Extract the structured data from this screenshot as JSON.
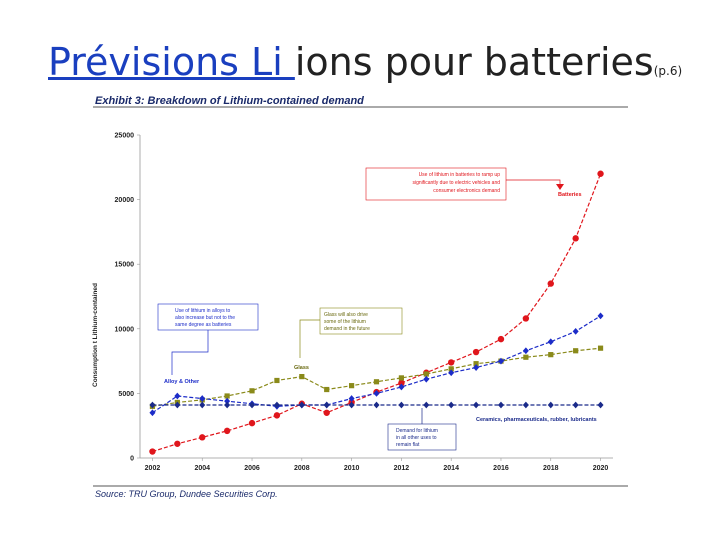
{
  "slide": {
    "title_link": "Prévisions  Li ",
    "title_rest": "ions pour batteries",
    "title_sub": "(p.6)"
  },
  "chart_data": {
    "type": "line",
    "title": "Exhibit 3: Breakdown of Lithium-contained demand",
    "source": "Source: TRU Group, Dundee Securities Corp.",
    "xlabel": "",
    "ylabel": "Consumption t Lithium-contained",
    "xlim": [
      2001.5,
      2020.5
    ],
    "ylim": [
      0,
      25000
    ],
    "x_ticks": [
      "2002",
      "2004",
      "2006",
      "2008",
      "2010",
      "2012",
      "2014",
      "2016",
      "2018",
      "2020"
    ],
    "y_ticks": [
      "0",
      "5000",
      "10000",
      "15000",
      "20000",
      "25000"
    ],
    "x": [
      2002,
      2003,
      2004,
      2005,
      2006,
      2007,
      2008,
      2009,
      2010,
      2011,
      2012,
      2013,
      2014,
      2015,
      2016,
      2017,
      2018,
      2019,
      2020
    ],
    "series": [
      {
        "name": "Batteries",
        "color": "#e0161c",
        "marker": "circle",
        "values": [
          500,
          1100,
          1600,
          2100,
          2700,
          3300,
          4200,
          3500,
          4300,
          5100,
          5800,
          6600,
          7400,
          8200,
          9200,
          10800,
          13500,
          17000,
          22000
        ]
      },
      {
        "name": "Glass",
        "color": "#8a8a1a",
        "marker": "square",
        "values": [
          4000,
          4300,
          4500,
          4800,
          5200,
          6000,
          6300,
          5300,
          5600,
          5900,
          6200,
          6500,
          6900,
          7300,
          7500,
          7800,
          8000,
          8300,
          8500
        ]
      },
      {
        "name": "Alloy & Other",
        "color": "#1c2cc8",
        "marker": "diamond",
        "values": [
          3500,
          4800,
          4600,
          4400,
          4200,
          4000,
          4100,
          4100,
          4600,
          5000,
          5500,
          6100,
          6600,
          7000,
          7500,
          8300,
          9000,
          9800,
          11000
        ]
      },
      {
        "name": "Ceramics, pharmaceuticals, rubber, lubricants",
        "color": "#1a2a8a",
        "marker": "diamond",
        "values": [
          4100,
          4100,
          4100,
          4100,
          4100,
          4100,
          4100,
          4100,
          4100,
          4100,
          4100,
          4100,
          4100,
          4100,
          4100,
          4100,
          4100,
          4100,
          4100
        ]
      }
    ],
    "annotations": {
      "batteries_note": [
        "Use of lithium in batteries to ramp up",
        "significantly due to electric vehicles and",
        "consumer electronics demand"
      ],
      "alloy_note": [
        "Use of lithium in alloys to",
        "also increase but not to the",
        "same degree as batteries"
      ],
      "glass_note": [
        "Glass will also drive",
        "some of the lithium",
        "demand in the future"
      ],
      "other_note": [
        "Demand for lithium",
        "in all other uses to",
        "remain flat"
      ]
    }
  }
}
